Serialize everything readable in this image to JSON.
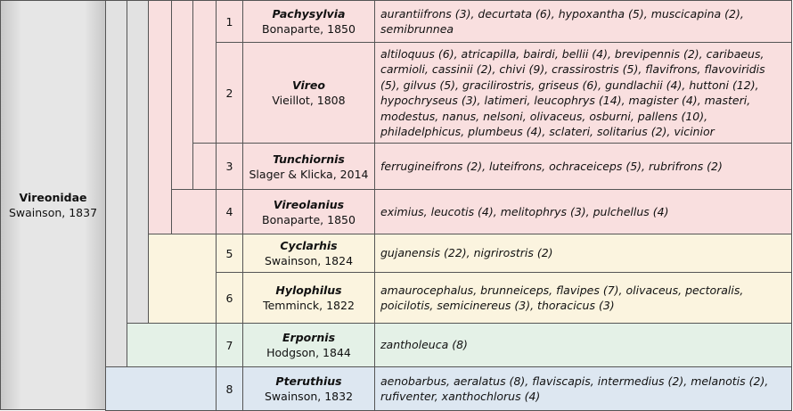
{
  "family": {
    "name": "Vireonidae",
    "author": "Swainson, 1837"
  },
  "genera": [
    {
      "number": 1,
      "name": "Pachysylvia",
      "author": "Bonaparte, 1850",
      "species": "aurantiifrons (3), decurtata (6), hypoxantha (5), muscicapina (2), semibrunnea"
    },
    {
      "number": 2,
      "name": "Vireo",
      "author": "Vieillot, 1808",
      "species": "altiloquus (6), atricapilla, bairdi, bellii (4), brevipennis (2), caribaeus, carmioli, cassinii (2), chivi (9), crassirostris (5), flavifrons, flavoviridis (5), gilvus (5), gracilirostris, griseus (6), gundlachii (4), huttoni (12), hypochryseus (3), latimeri, leucophrys (14), magister (4), masteri, modestus, nanus, nelsoni, olivaceus, osburni, pallens (10), philadelphicus, plumbeus (4), sclateri, solitarius (2), vicinior"
    },
    {
      "number": 3,
      "name": "Tunchiornis",
      "author": "Slager & Klicka, 2014",
      "species": "ferrugineifrons (2), luteifrons, ochraceiceps (5), rubrifrons (2)"
    },
    {
      "number": 4,
      "name": "Vireolanius",
      "author": "Bonaparte, 1850",
      "species": "eximius, leucotis (4), melitophrys (3), pulchellus (4)"
    },
    {
      "number": 5,
      "name": "Cyclarhis",
      "author": "Swainson, 1824",
      "species": "gujanensis (22), nigrirostris (2)"
    },
    {
      "number": 6,
      "name": "Hylophilus",
      "author": "Temminck, 1822",
      "species": "amaurocephalus, brunneiceps, flavipes (7), olivaceus, pectoralis, poicilotis, semicinereus (3), thoracicus (3)"
    },
    {
      "number": 7,
      "name": "Erpornis",
      "author": "Hodgson, 1844",
      "species": "zantholeuca (8)"
    },
    {
      "number": 8,
      "name": "Pteruthius",
      "author": "Swainson, 1832",
      "species": "aenobarbus, aeralatus (8), flaviscapis, intermedius (2), melanotis (2), rufiventer, xanthochlorus (4)"
    }
  ]
}
